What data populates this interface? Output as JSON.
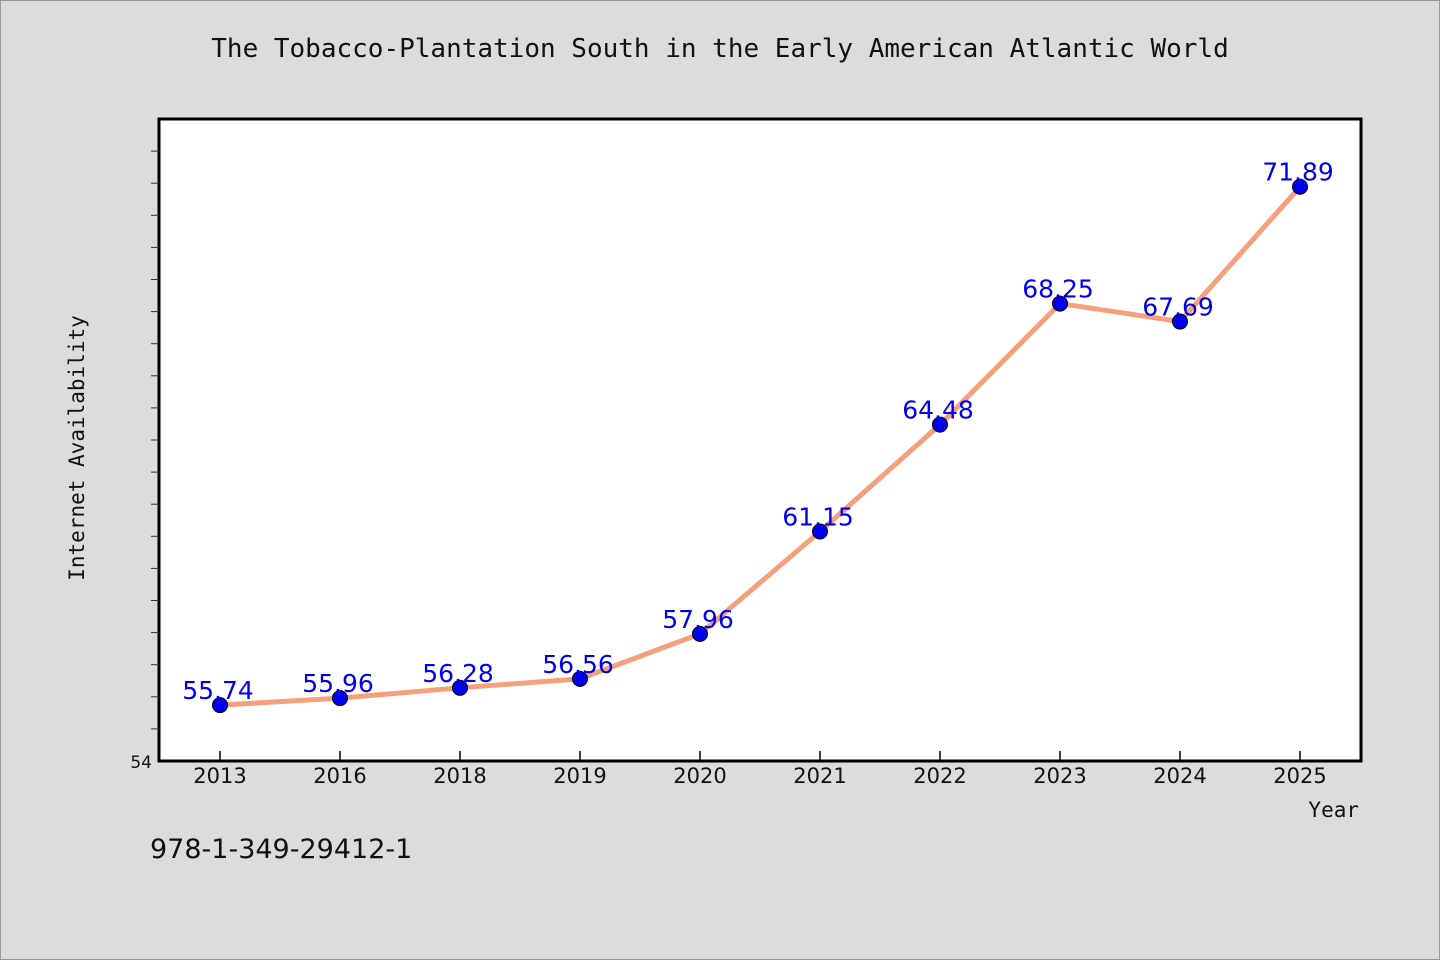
{
  "chart_data": {
    "type": "line",
    "title": "The Tobacco-Plantation South in the Early American Atlantic World",
    "xlabel": "Year",
    "ylabel": "Internet Availability",
    "x": [
      "2013",
      "2016",
      "2018",
      "2019",
      "2020",
      "2021",
      "2022",
      "2023",
      "2024",
      "2025"
    ],
    "series": [
      {
        "values": [
          55.74,
          55.96,
          56.28,
          56.56,
          57.96,
          61.15,
          64.48,
          68.25,
          67.69,
          71.89
        ]
      }
    ],
    "y_tick_labels": [
      "54"
    ],
    "ylim": [
      54,
      74
    ],
    "grid": false,
    "legend": "none",
    "colors": {
      "line": "#f4a07c",
      "marker": "#0000ee",
      "data_label": "#0000ee",
      "background": "#dcdcdc",
      "plot_background": "#ffffff"
    }
  },
  "footer": {
    "isbn": "978-1-349-29412-1"
  }
}
